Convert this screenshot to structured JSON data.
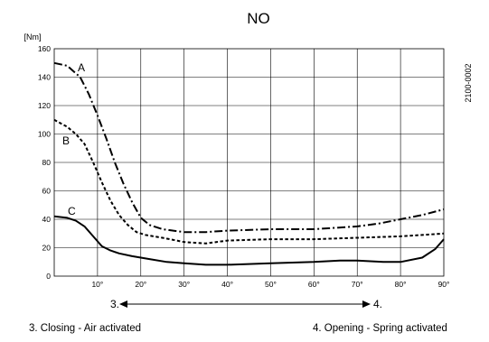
{
  "chart_data": {
    "type": "line",
    "title": "NO",
    "ylabel": "[Nm]",
    "code": "2100-0002",
    "xlim": [
      0,
      90
    ],
    "ylim": [
      0,
      160
    ],
    "grid": true,
    "y_ticks": [
      "0",
      "20",
      "40",
      "60",
      "80",
      "100",
      "120",
      "140",
      "160"
    ],
    "x_ticks": [
      "10°",
      "20°",
      "30°",
      "40°",
      "50°",
      "60°",
      "70°",
      "80°",
      "90°"
    ],
    "series": [
      {
        "name": "A",
        "style": "dash-dot",
        "x": [
          0,
          3,
          6,
          8,
          10,
          12,
          14,
          16,
          18,
          20,
          22,
          25,
          30,
          35,
          40,
          50,
          60,
          70,
          75,
          80,
          85,
          90
        ],
        "y": [
          150,
          148,
          140,
          128,
          113,
          97,
          80,
          65,
          52,
          41,
          36,
          33,
          31,
          31,
          32,
          33,
          33,
          35,
          37,
          40,
          43,
          47
        ]
      },
      {
        "name": "B",
        "style": "dotted",
        "x": [
          0,
          3,
          5,
          7,
          9,
          11,
          13,
          15,
          17,
          19,
          21,
          25,
          30,
          35,
          40,
          50,
          60,
          70,
          80,
          90
        ],
        "y": [
          110,
          105,
          100,
          93,
          80,
          66,
          53,
          43,
          36,
          31,
          29,
          27,
          24,
          23,
          25,
          26,
          26,
          27,
          28,
          30
        ]
      },
      {
        "name": "C",
        "style": "solid",
        "x": [
          0,
          3,
          5,
          7,
          9,
          11,
          13,
          15,
          18,
          22,
          26,
          30,
          35,
          40,
          50,
          60,
          66,
          70,
          76,
          80,
          85,
          88,
          90
        ],
        "y": [
          42,
          41,
          39,
          35,
          28,
          21,
          18,
          16,
          14,
          12,
          10,
          9,
          8,
          8,
          9,
          10,
          11,
          11,
          10,
          10,
          13,
          19,
          26
        ]
      }
    ],
    "arrow": {
      "from_label": "3.",
      "to_label": "4."
    },
    "legend": [
      "3.  Closing - Air activated",
      "4.  Opening - Spring activated"
    ]
  }
}
